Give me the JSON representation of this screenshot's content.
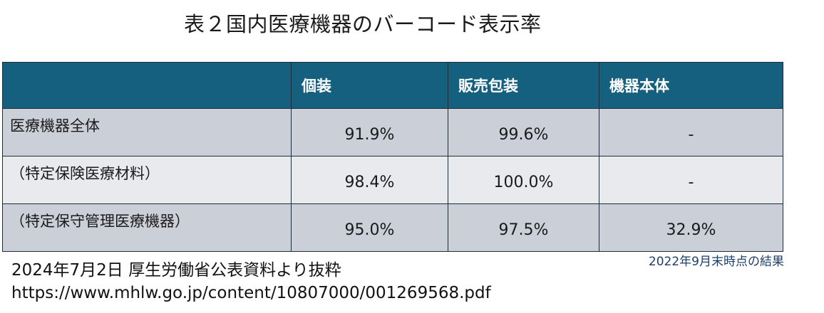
{
  "title": "表２国内医療機器のバーコード表示率",
  "table": {
    "headers": [
      "",
      "個装",
      "販売包装",
      "機器本体"
    ],
    "rows": [
      {
        "label": "医療機器全体",
        "values": [
          "91.9%",
          "99.6%",
          "-"
        ]
      },
      {
        "label": "（特定保険医療材料）",
        "values": [
          "98.4%",
          "100.0%",
          "-"
        ]
      },
      {
        "label": "（特定保守管理医療機器）",
        "values": [
          "95.0%",
          "97.5%",
          "32.9%"
        ]
      }
    ]
  },
  "note": "2022年9月末時点の結果",
  "source": {
    "line1": "2024年7月2日 厚生労働省公表資料より抜粋",
    "line2": "https://www.mhlw.go.jp/content/10807000/001269568.pdf"
  },
  "colors": {
    "header_bg": "#16607f",
    "header_text": "#ffffff",
    "row_dark": "#cbcfd8",
    "row_light": "#e8eaee",
    "note_text": "#1f3f66"
  }
}
